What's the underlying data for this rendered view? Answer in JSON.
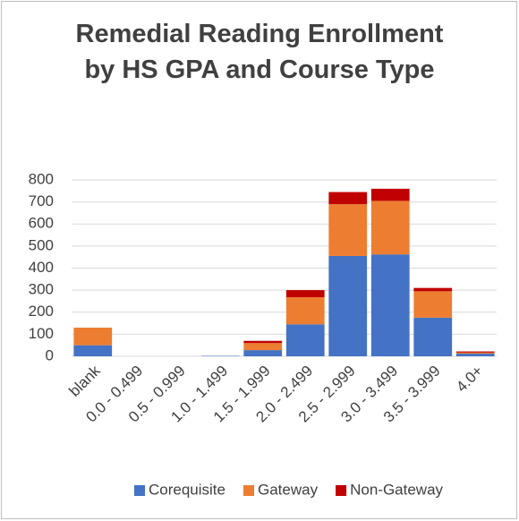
{
  "chart_data": {
    "type": "bar",
    "stacked": true,
    "title": "Remedial Reading Enrollment by HS GPA and Course Type",
    "categories": [
      "blank",
      "0.0 - 0.499",
      "0.5 - 0.999",
      "1.0 - 1.499",
      "1.5 - 1.999",
      "2.0 - 2.499",
      "2.5 - 2.999",
      "3.0 - 3.499",
      "3.5 - 3.999",
      "4.0+"
    ],
    "series": [
      {
        "name": "Corequisite",
        "color": "#4472c4",
        "values": [
          50,
          0,
          0,
          2,
          28,
          145,
          455,
          462,
          175,
          12
        ]
      },
      {
        "name": "Gateway",
        "color": "#ed7d31",
        "values": [
          80,
          0,
          0,
          0,
          32,
          123,
          235,
          243,
          120,
          5
        ]
      },
      {
        "name": "Non-Gateway",
        "color": "#c00000",
        "values": [
          0,
          0,
          0,
          0,
          10,
          32,
          55,
          55,
          15,
          5
        ]
      }
    ],
    "ylim": [
      0,
      800
    ],
    "yticks": [
      0,
      100,
      200,
      300,
      400,
      500,
      600,
      700,
      800
    ],
    "grid": true,
    "legend": "bottom"
  }
}
